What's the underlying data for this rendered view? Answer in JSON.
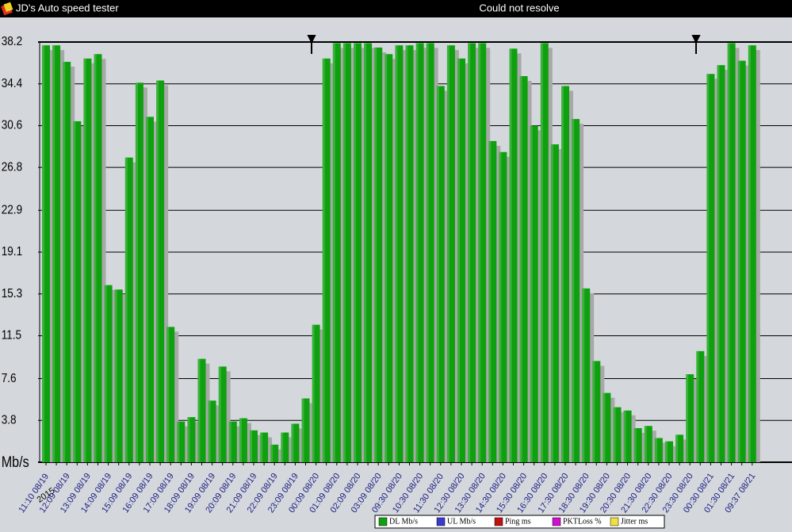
{
  "app_title": "JD's Auto speed tester",
  "status": "Could not resolve",
  "chart_data": {
    "type": "bar",
    "y_label": "Mb/s",
    "year": "2015",
    "categories": [
      "11:10 08/19",
      null,
      "12:09 08/19",
      null,
      "13:09 08/19",
      null,
      "14:09 08/19",
      null,
      "15:09 08/19",
      null,
      "16:09 08/19",
      null,
      "17:09 08/19",
      null,
      "18:09 08/19",
      null,
      "19:09 08/19",
      null,
      "20:09 08/19",
      null,
      "21:09 08/19",
      null,
      "22:09 08/19",
      null,
      "23:09 08/19",
      null,
      "00:09 08/20",
      null,
      "01:09 08/20",
      null,
      "02:09 08/20",
      null,
      "03:09 08/20",
      null,
      "09:30 08/20",
      null,
      "10:30 08/20",
      null,
      "11:30 08/20",
      null,
      "12:30 08/20",
      null,
      "13:30 08/20",
      null,
      "14:30 08/20",
      null,
      "15:30 08/20",
      null,
      "16:30 08/20",
      null,
      "17:30 08/20",
      null,
      "18:30 08/20",
      null,
      "19:30 08/20",
      null,
      "20:30 08/20",
      null,
      "21:30 08/20",
      null,
      "22:30 08/20",
      null,
      "23:30 08/20",
      null,
      "00:30 08/21",
      null,
      "01:30 08/21",
      null,
      "09:37 08/21"
    ],
    "series": [
      {
        "name": "DL Mb/s",
        "color": "#0fa00f",
        "values": [
          37.9,
          37.9,
          36.4,
          31.0,
          36.7,
          37.1,
          16.1,
          15.7,
          27.7,
          34.5,
          31.4,
          34.7,
          12.3,
          3.7,
          4.1,
          9.4,
          5.6,
          8.7,
          3.7,
          4.0,
          2.9,
          2.7,
          1.6,
          2.7,
          3.5,
          5.8,
          12.5,
          36.7,
          38.1,
          38.1,
          38.1,
          38.1,
          37.7,
          37.1,
          37.9,
          37.9,
          38.1,
          38.1,
          34.2,
          37.9,
          36.7,
          38.1,
          38.1,
          29.2,
          28.2,
          37.6,
          35.1,
          30.6,
          38.1,
          28.9,
          34.2,
          31.2,
          15.8,
          9.2,
          6.3,
          5.0,
          4.7,
          3.1,
          3.3,
          2.2,
          1.9,
          2.5,
          8.0,
          10.1,
          35.3,
          36.1,
          38.1,
          36.5,
          37.9
        ]
      }
    ],
    "legend": [
      {
        "name": "DL Mb/s",
        "color": "#0fa00f"
      },
      {
        "name": "UL Mb/s",
        "color": "#3a3acf"
      },
      {
        "name": "Ping ms",
        "color": "#c01010"
      },
      {
        "name": "PKTLoss %",
        "color": "#d010d0"
      },
      {
        "name": "Jitter ms",
        "color": "#f0e040"
      }
    ],
    "ylim": [
      0,
      38.2
    ],
    "yticks": [
      3.8,
      7.6,
      11.5,
      15.3,
      19.1,
      22.9,
      26.8,
      30.6,
      34.4,
      38.2
    ],
    "grid": true
  }
}
